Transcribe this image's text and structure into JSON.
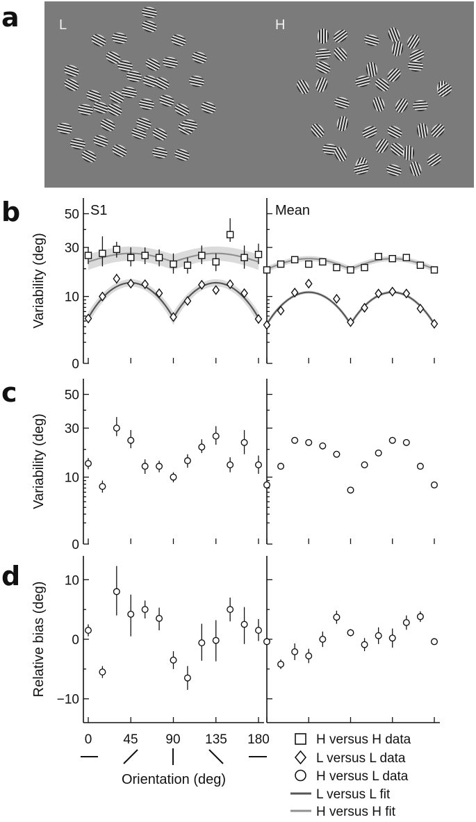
{
  "panel_letters": {
    "a": "a",
    "b": "b",
    "c": "c",
    "d": "d"
  },
  "stimulus": {
    "left_label": "L",
    "right_label": "H",
    "background": "#7b7b7b"
  },
  "legend": {
    "hh_data": "H versus H data",
    "ll_data": "L versus L data",
    "hl_data": "H versus L data",
    "ll_fit": "L versus L fit",
    "hh_fit": "H versus H fit"
  },
  "x_axis": {
    "title": "Orientation (deg)",
    "ticks": [
      "0",
      "45",
      "90",
      "135",
      "180"
    ]
  },
  "colors": {
    "ll_fit": "#555555",
    "hh_fit": "#909090",
    "ci_band": "#cfcfcf",
    "marker": "#111111"
  },
  "chart_data": [
    {
      "id": "b-left",
      "type": "scatter",
      "subject": "S1",
      "ylabel": "Variability (deg)",
      "y_scale": "sqrt",
      "ylim": [
        0,
        60
      ],
      "yticks": [
        "0",
        "10",
        "30",
        "50"
      ],
      "x": [
        0,
        15,
        30,
        45,
        60,
        75,
        90,
        105,
        120,
        135,
        150,
        165,
        180
      ],
      "series": [
        {
          "name": "H versus H data",
          "marker": "square",
          "values": [
            26,
            27,
            29,
            25,
            26,
            25,
            22,
            21.5,
            26,
            23,
            37,
            25,
            26.5
          ],
          "err": [
            [
              22,
              30
            ],
            [
              21,
              36
            ],
            [
              25,
              33
            ],
            [
              21,
              30
            ],
            [
              22,
              30
            ],
            [
              21,
              29
            ],
            [
              18,
              27
            ],
            [
              18,
              25
            ],
            [
              22,
              31
            ],
            [
              19,
              27
            ],
            [
              33,
              47
            ],
            [
              20,
              31
            ],
            [
              22,
              32
            ]
          ]
        },
        {
          "name": "L versus L data",
          "marker": "diamond",
          "values": [
            4.5,
            10,
            16,
            14.2,
            14,
            11,
            4.8,
            8.7,
            13.8,
            12,
            14,
            11,
            4.4
          ],
          "err": [
            [
              3.9,
              5.1
            ],
            [
              8.7,
              11.3
            ],
            [
              14.2,
              17.9
            ],
            [
              12.8,
              15.7
            ],
            [
              12.6,
              15.5
            ],
            [
              9.7,
              12.3
            ],
            [
              4.2,
              5.4
            ],
            [
              7.7,
              9.7
            ],
            [
              12.4,
              15.2
            ],
            [
              10.6,
              13.4
            ],
            [
              12.5,
              15.5
            ],
            [
              9.7,
              12.3
            ],
            [
              3.8,
              5.0
            ]
          ]
        },
        {
          "name": "H versus H fit",
          "kind": "fit",
          "min": 23,
          "max": 27,
          "band": 3.5
        },
        {
          "name": "L versus L fit",
          "kind": "fit",
          "min": 4.6,
          "max": 14.5,
          "band": 1.3
        }
      ]
    },
    {
      "id": "b-right",
      "type": "scatter",
      "subject": "Mean",
      "y_scale": "sqrt",
      "ylim": [
        0,
        60
      ],
      "x": [
        0,
        15,
        30,
        45,
        60,
        75,
        90,
        105,
        120,
        135,
        150,
        165,
        180
      ],
      "series": [
        {
          "name": "H versus H data",
          "marker": "square",
          "values": [
            19.5,
            22,
            24,
            22,
            23,
            20.5,
            19.5,
            20.5,
            25.5,
            24.5,
            25,
            21.5,
            19.5
          ],
          "err": [
            [
              18.5,
              20.5
            ],
            [
              21,
              23
            ],
            [
              23,
              25
            ],
            [
              21,
              23
            ],
            [
              22,
              24
            ],
            [
              19.5,
              21.5
            ],
            [
              18.5,
              20.5
            ],
            [
              19.5,
              21.5
            ],
            [
              24.5,
              26.5
            ],
            [
              23.5,
              25.5
            ],
            [
              24,
              26
            ],
            [
              20.5,
              22.5
            ],
            [
              18.5,
              20.5
            ]
          ]
        },
        {
          "name": "L versus L data",
          "marker": "diamond",
          "values": [
            3.3,
            6.2,
            11.2,
            14.2,
            9.3,
            3.8,
            6.9,
            10.9,
            11.5,
            10.9,
            6.7,
            3.5
          ],
          "x_override": [
            0,
            15,
            30,
            45,
            75,
            90,
            105,
            120,
            135,
            150,
            165,
            180
          ],
          "err": [
            [
              3.1,
              3.5
            ],
            [
              5.9,
              6.5
            ],
            [
              10.8,
              11.6
            ],
            [
              13.7,
              14.7
            ],
            [
              8.9,
              9.7
            ],
            [
              3.6,
              4.0
            ],
            [
              6.6,
              7.2
            ],
            [
              10.5,
              11.3
            ],
            [
              11.1,
              11.9
            ],
            [
              10.5,
              11.3
            ],
            [
              6.4,
              7.0
            ],
            [
              3.3,
              3.7
            ]
          ]
        },
        {
          "name": "H versus H fit",
          "kind": "fit",
          "min": 19.8,
          "max": 24.5,
          "band": 1.2
        },
        {
          "name": "L versus L fit",
          "kind": "fit",
          "min": 3.4,
          "max": 11.3,
          "band": 0.5
        }
      ]
    },
    {
      "id": "c-left",
      "type": "scatter",
      "subject": "",
      "ylabel": "Variability (deg)",
      "y_scale": "sqrt",
      "ylim": [
        0,
        60
      ],
      "yticks": [
        "0",
        "10",
        "30",
        "50"
      ],
      "x": [
        0,
        15,
        30,
        45,
        60,
        75,
        90,
        105,
        120,
        135,
        150,
        165,
        180
      ],
      "series": [
        {
          "name": "H versus L data",
          "marker": "circle",
          "values": [
            14.5,
            7.4,
            30,
            24,
            13.5,
            13.5,
            10,
            15.5,
            21,
            26,
            14,
            23,
            14
          ],
          "err": [
            [
              12.5,
              16.5
            ],
            [
              5.9,
              9
            ],
            [
              26,
              36
            ],
            [
              20.5,
              29
            ],
            [
              11,
              16
            ],
            [
              11.5,
              15.5
            ],
            [
              8.5,
              11.5
            ],
            [
              13,
              18
            ],
            [
              18.5,
              24.5
            ],
            [
              22,
              31
            ],
            [
              11.5,
              16.8
            ],
            [
              18,
              29
            ],
            [
              11,
              17.5
            ]
          ]
        }
      ]
    },
    {
      "id": "c-right",
      "type": "scatter",
      "subject": "",
      "y_scale": "sqrt",
      "ylim": [
        0,
        60
      ],
      "x": [
        0,
        15,
        30,
        45,
        60,
        75,
        90,
        105,
        120,
        135,
        150,
        165,
        180
      ],
      "series": [
        {
          "name": "H versus L data",
          "marker": "circle",
          "values": [
            7.8,
            13.5,
            24,
            23,
            21.5,
            18,
            6.5,
            14,
            18.5,
            24,
            23,
            13.5,
            7.8
          ],
          "err": [
            [
              7.2,
              8.4
            ],
            [
              12.6,
              14.4
            ],
            [
              22.5,
              25.5
            ],
            [
              21.5,
              24.5
            ],
            [
              20,
              23
            ],
            [
              16.7,
              19.3
            ],
            [
              6.0,
              7.0
            ],
            [
              13,
              15
            ],
            [
              17.3,
              19.7
            ],
            [
              22.5,
              25.5
            ],
            [
              21.5,
              24.5
            ],
            [
              12.6,
              14.4
            ],
            [
              7.2,
              8.4
            ]
          ]
        }
      ]
    },
    {
      "id": "d-left",
      "type": "scatter",
      "subject": "",
      "ylabel": "Relative bias (deg)",
      "y_scale": "linear",
      "ylim": [
        -14,
        14
      ],
      "yticks": [
        "−10",
        "0",
        "10"
      ],
      "x": [
        0,
        15,
        30,
        45,
        60,
        75,
        90,
        105,
        120,
        135,
        150,
        165,
        180
      ],
      "series": [
        {
          "name": "H versus L data",
          "marker": "circle",
          "values": [
            1.5,
            -5.5,
            8,
            4.2,
            5,
            3.5,
            -3.5,
            -6.5,
            -0.6,
            -0.2,
            5,
            2.5,
            1.5
          ],
          "err": [
            [
              0.5,
              2.5
            ],
            [
              -6.5,
              -4.5
            ],
            [
              4,
              12.3
            ],
            [
              0.5,
              7.5
            ],
            [
              3.5,
              6.5
            ],
            [
              1.5,
              5.3
            ],
            [
              -5,
              -2
            ],
            [
              -8.5,
              -4.5
            ],
            [
              -3.6,
              2.6
            ],
            [
              -3.7,
              3.2
            ],
            [
              3,
              7
            ],
            [
              -0.8,
              5.4
            ],
            [
              -0.3,
              3.4
            ]
          ]
        }
      ]
    },
    {
      "id": "d-right",
      "type": "scatter",
      "subject": "",
      "y_scale": "linear",
      "ylim": [
        -14,
        14
      ],
      "x": [
        0,
        15,
        30,
        45,
        60,
        75,
        90,
        105,
        120,
        135,
        150,
        165,
        180
      ],
      "series": [
        {
          "name": "H versus L data",
          "marker": "circle",
          "values": [
            -0.4,
            -4.2,
            -2.1,
            -2.8,
            0,
            3.7,
            1.1,
            -0.9,
            0.6,
            0.2,
            2.8,
            3.8,
            -0.4
          ],
          "err": [
            [
              -0.9,
              0.1
            ],
            [
              -5,
              -3.4
            ],
            [
              -3.5,
              -0.7
            ],
            [
              -4.0,
              -1.6
            ],
            [
              -1.3,
              1.3
            ],
            [
              2.6,
              4.8
            ],
            [
              0.5,
              1.7
            ],
            [
              -2,
              0.2
            ],
            [
              -0.8,
              2.0
            ],
            [
              -1.4,
              1.8
            ],
            [
              1.6,
              4.0
            ],
            [
              2.9,
              4.7
            ],
            [
              -0.9,
              0.1
            ]
          ]
        }
      ]
    }
  ]
}
